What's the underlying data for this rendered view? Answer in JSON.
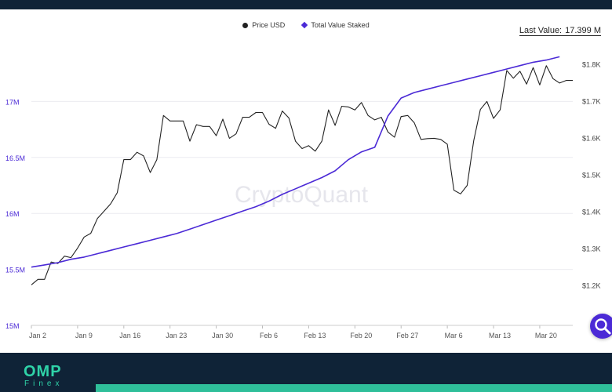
{
  "legend": {
    "price_label": "Price USD",
    "staked_label": "Total Value Staked"
  },
  "last_value": {
    "label": "Last Value:",
    "value": "17.399 M"
  },
  "watermark": "CryptoQuant",
  "footer": {
    "logo_main": "OMP",
    "logo_sub": "Finex"
  },
  "colors": {
    "price_line": "#222222",
    "staked_line": "#4b2ad6",
    "left_axis_text": "#4b2ad6",
    "right_axis_text": "#444444",
    "header_bg": "#0f2337",
    "footer_accent": "#2fbf9a"
  },
  "icons": {
    "search": "search-icon"
  },
  "chart_data": {
    "type": "line",
    "x_ticks": [
      "Jan 2",
      "Jan 9",
      "Jan 16",
      "Jan 23",
      "Jan 30",
      "Feb 6",
      "Feb 13",
      "Feb 20",
      "Feb 27",
      "Mar 6",
      "Mar 13",
      "Mar 20"
    ],
    "left_axis": {
      "ticks": [
        "15M",
        "15.5M",
        "16M",
        "16.5M",
        "17M"
      ],
      "ylim": [
        15000000,
        17500000
      ]
    },
    "right_axis": {
      "ticks": [
        "$1.2K",
        "$1.3K",
        "$1.4K",
        "$1.5K",
        "$1.6K",
        "$1.7K",
        "$1.8K"
      ],
      "ylim": [
        1090,
        1850
      ]
    },
    "grid": true,
    "legend_position": "top-center",
    "series": [
      {
        "name": "Price USD",
        "axis": "right",
        "x": [
          0,
          1,
          2,
          3,
          4,
          5,
          6,
          7,
          8,
          9,
          10,
          11,
          12,
          13,
          14,
          15,
          16,
          17,
          18,
          19,
          20,
          21,
          22,
          23,
          24,
          25,
          26,
          27,
          28,
          29,
          30,
          31,
          32,
          33,
          34,
          35,
          36,
          37,
          38,
          39,
          40,
          41,
          42,
          43,
          44,
          45,
          46,
          47,
          48,
          49,
          50,
          51,
          52,
          53,
          54,
          55,
          56,
          57,
          58,
          59,
          60,
          61,
          62,
          63,
          64,
          65,
          66,
          67,
          68,
          69,
          70,
          71,
          72,
          73,
          74,
          75,
          76,
          77,
          78,
          79,
          80,
          81,
          82
        ],
        "values": [
          1200,
          1215,
          1215,
          1262,
          1258,
          1278,
          1274,
          1300,
          1330,
          1340,
          1380,
          1400,
          1420,
          1450,
          1540,
          1540,
          1560,
          1550,
          1505,
          1540,
          1660,
          1645,
          1645,
          1645,
          1590,
          1635,
          1630,
          1630,
          1605,
          1650,
          1598,
          1610,
          1655,
          1655,
          1668,
          1668,
          1636,
          1625,
          1672,
          1653,
          1590,
          1570,
          1578,
          1563,
          1590,
          1675,
          1633,
          1685,
          1683,
          1675,
          1695,
          1660,
          1648,
          1655,
          1615,
          1601,
          1657,
          1660,
          1640,
          1595,
          1597,
          1598,
          1595,
          1582,
          1457,
          1447,
          1470,
          1592,
          1676,
          1698,
          1652,
          1675,
          1782,
          1761,
          1780,
          1745,
          1790,
          1743,
          1795,
          1760,
          1748,
          1755,
          1755
        ],
        "color": "#222222"
      },
      {
        "name": "Total Value Staked",
        "axis": "left",
        "x": [
          0,
          2,
          4,
          6,
          8,
          10,
          12,
          14,
          16,
          18,
          20,
          22,
          24,
          26,
          28,
          30,
          32,
          34,
          36,
          38,
          40,
          42,
          44,
          46,
          48,
          50,
          52,
          54,
          56,
          58,
          60,
          62,
          64,
          66,
          68,
          70,
          72,
          74,
          76,
          78,
          80
        ],
        "values": [
          15520000,
          15540000,
          15560000,
          15590000,
          15610000,
          15640000,
          15670000,
          15700000,
          15730000,
          15760000,
          15790000,
          15820000,
          15860000,
          15900000,
          15940000,
          15980000,
          16020000,
          16060000,
          16110000,
          16170000,
          16220000,
          16270000,
          16320000,
          16380000,
          16480000,
          16550000,
          16590000,
          16870000,
          17030000,
          17080000,
          17110000,
          17140000,
          17170000,
          17200000,
          17230000,
          17260000,
          17290000,
          17320000,
          17350000,
          17370000,
          17399000
        ],
        "color": "#4b2ad6"
      }
    ]
  }
}
